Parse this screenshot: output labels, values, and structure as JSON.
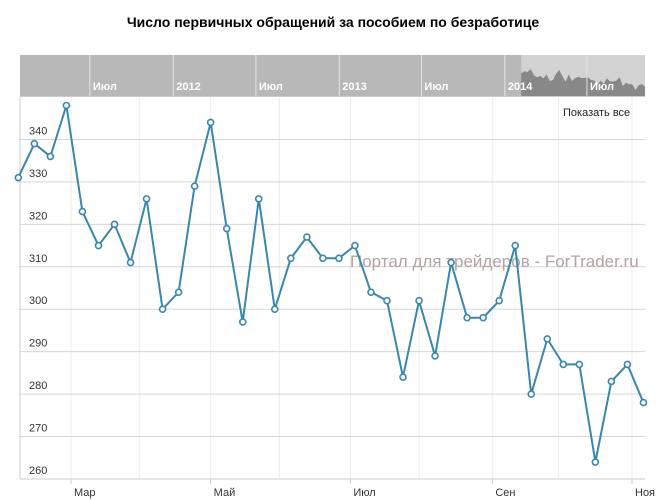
{
  "chart_data": {
    "type": "line",
    "title": "Число первичных обращений за пособием по безработице",
    "xlabel": "",
    "ylabel": "",
    "x": [
      "2014-02-06",
      "2014-02-13",
      "2014-02-20",
      "2014-02-27",
      "2014-03-06",
      "2014-03-13",
      "2014-03-20",
      "2014-03-27",
      "2014-04-03",
      "2014-04-10",
      "2014-04-17",
      "2014-04-24",
      "2014-05-01",
      "2014-05-08",
      "2014-05-15",
      "2014-05-22",
      "2014-05-29",
      "2014-06-05",
      "2014-06-12",
      "2014-06-19",
      "2014-06-26",
      "2014-07-03",
      "2014-07-10",
      "2014-07-17",
      "2014-07-24",
      "2014-07-31",
      "2014-08-07",
      "2014-08-14",
      "2014-08-21",
      "2014-08-28",
      "2014-09-04",
      "2014-09-11",
      "2014-09-18",
      "2014-09-25",
      "2014-10-02",
      "2014-10-09",
      "2014-10-16",
      "2014-10-23",
      "2014-10-30",
      "2014-11-06"
    ],
    "values": [
      331,
      339,
      336,
      348,
      323,
      315,
      320,
      311,
      326,
      300,
      304,
      329,
      344,
      319,
      297,
      326,
      300,
      312,
      317,
      312,
      312,
      315,
      304,
      302,
      284,
      302,
      289,
      311,
      298,
      298,
      302,
      315,
      280,
      293,
      287,
      287,
      264,
      283,
      287,
      278
    ],
    "ylim": [
      260,
      350
    ],
    "yticks": [
      "260",
      "270",
      "280",
      "290",
      "300",
      "310",
      "320",
      "330",
      "340"
    ],
    "xticks": [
      {
        "label": "Мар",
        "date": "2014-03-01"
      },
      {
        "label": "Май",
        "date": "2014-05-01"
      },
      {
        "label": "Июл",
        "date": "2014-07-01"
      },
      {
        "label": "Сен",
        "date": "2014-09-01"
      },
      {
        "label": "Ноя",
        "date": "2014-11-01"
      }
    ],
    "grid": true,
    "line_color": "#3a87ad",
    "navigator": {
      "ticks": [
        {
          "label": "Июл",
          "date": "2011-07-01"
        },
        {
          "label": "2012",
          "date": "2012-01-01"
        },
        {
          "label": "Июл",
          "date": "2012-07-01"
        },
        {
          "label": "2013",
          "date": "2013-01-01"
        },
        {
          "label": "Июл",
          "date": "2013-07-01"
        },
        {
          "label": "2014",
          "date": "2014-01-01"
        },
        {
          "label": "Июл",
          "date": "2014-07-01"
        }
      ],
      "background": "#b8b8b8",
      "selected_background": "#d3d3d3"
    }
  },
  "controls": {
    "show_all": "Показать все"
  },
  "watermark": "Портал для трейдеров - ForTrader.ru"
}
